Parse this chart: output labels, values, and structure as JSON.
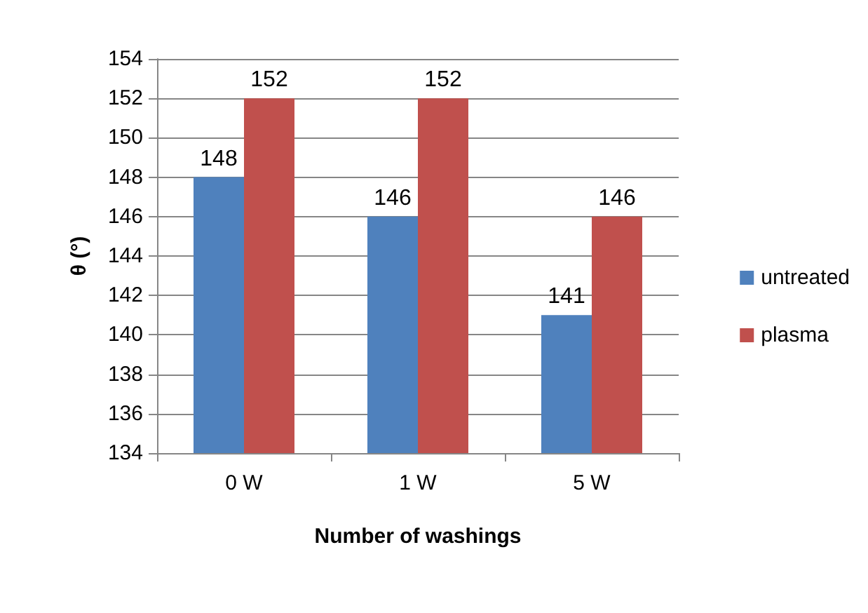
{
  "chart_data": {
    "type": "bar",
    "xlabel": "Number of washings",
    "ylabel": "θ (°)",
    "categories": [
      "0 W",
      "1 W",
      "5 W"
    ],
    "series": [
      {
        "name": "untreated",
        "color": "#4f81bd",
        "values": [
          148,
          146,
          141
        ]
      },
      {
        "name": "plasma",
        "color": "#c0504d",
        "values": [
          152,
          152,
          146
        ]
      }
    ],
    "ylim": [
      134,
      154
    ],
    "yticks": [
      134,
      136,
      138,
      140,
      142,
      144,
      146,
      148,
      150,
      152,
      154
    ],
    "grid": "y",
    "legend": "right",
    "data_labels": true
  }
}
